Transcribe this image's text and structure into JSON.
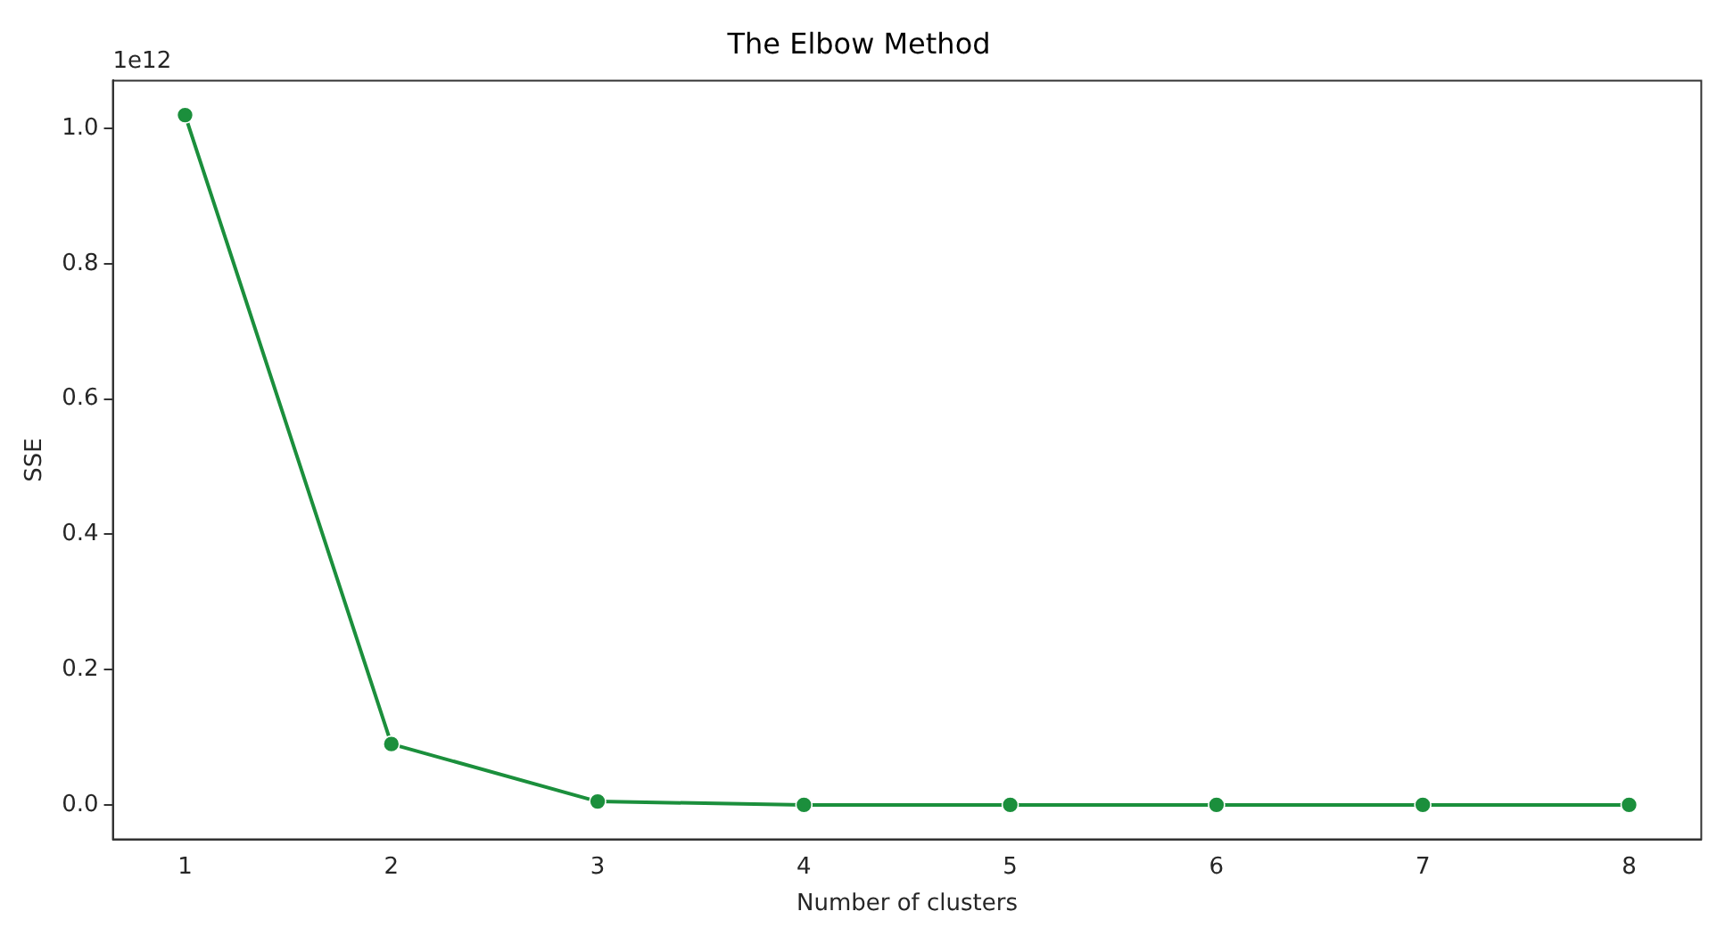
{
  "chart_data": {
    "type": "line",
    "title": "The Elbow Method",
    "xlabel": "Number of clusters",
    "ylabel": "SSE",
    "annotations": [
      "1e12"
    ],
    "x": [
      1,
      2,
      3,
      4,
      5,
      6,
      7,
      8
    ],
    "series": [
      {
        "color": "#1b8f3c",
        "values": [
          1.02,
          0.09,
          0.005,
          0,
          0,
          0,
          0,
          0
        ]
      }
    ],
    "xlim": [
      0.65,
      8.35
    ],
    "xticks": [
      1,
      2,
      3,
      4,
      5,
      6,
      7,
      8
    ],
    "ylim": [
      -0.051,
      1.071
    ],
    "yticks": [
      {
        "value": 0,
        "label": "0.0"
      },
      {
        "value": 0.2,
        "label": "0.2"
      },
      {
        "value": 0.4,
        "label": "0.4"
      },
      {
        "value": 0.6,
        "label": "0.6"
      },
      {
        "value": 0.8,
        "label": "0.8"
      },
      {
        "value": 1,
        "label": "1.0"
      }
    ],
    "grid": false,
    "legend": false,
    "marker": "circle",
    "line_style": "solid"
  }
}
